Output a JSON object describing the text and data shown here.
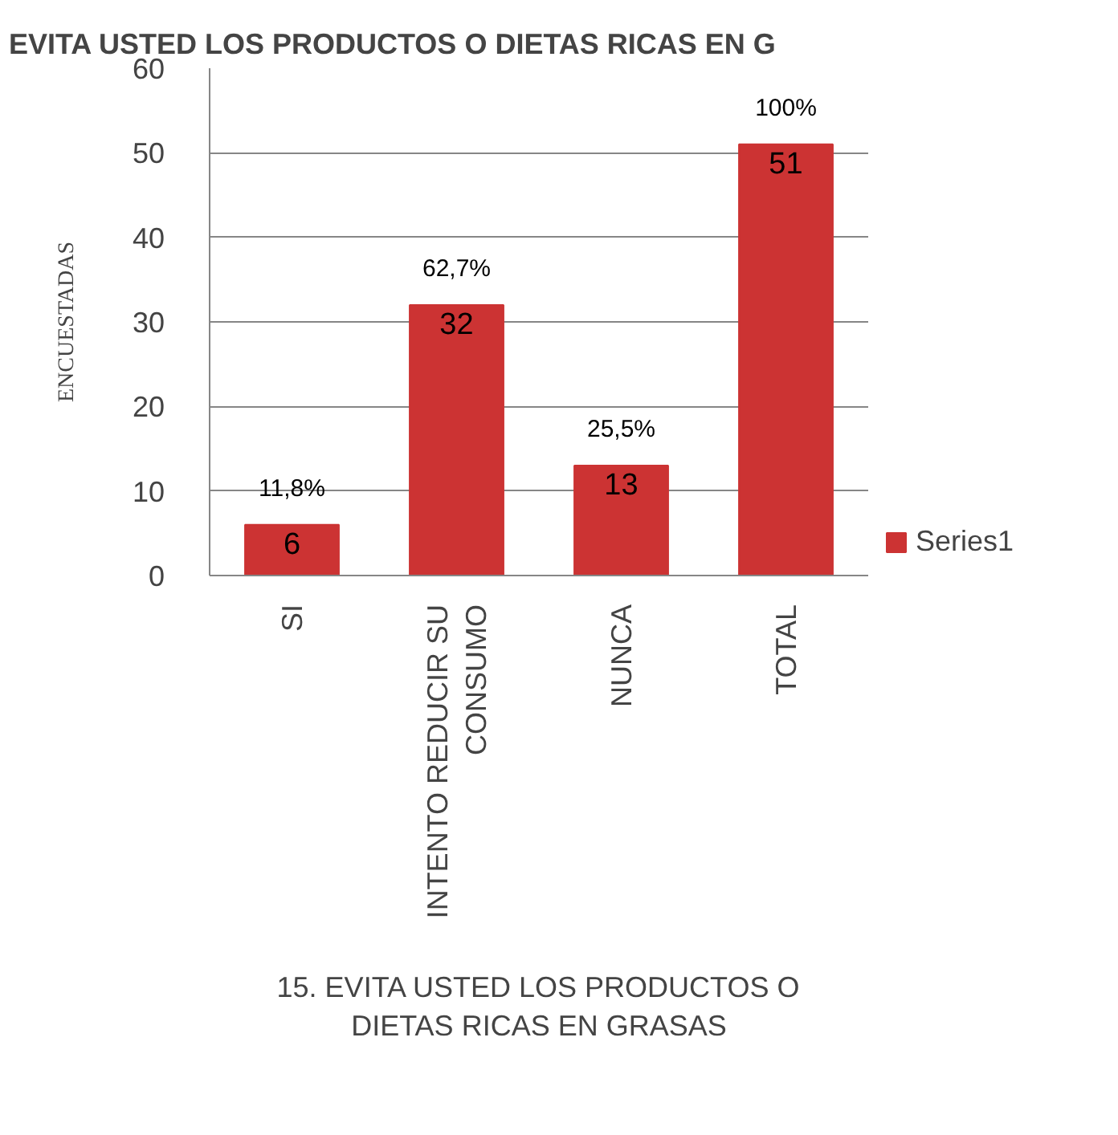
{
  "chart_data": {
    "type": "bar",
    "title": "EVITA USTED LOS PRODUCTOS O DIETAS RICAS EN G",
    "xlabel": "15. EVITA USTED LOS PRODUCTOS O DIETAS RICAS EN GRASAS",
    "ylabel": "ENCUESTADAS",
    "categories": [
      "SI",
      "INTENTO REDUCIR SU CONSUMO",
      "NUNCA",
      "TOTAL"
    ],
    "series": [
      {
        "name": "Series1",
        "color": "#cc3333",
        "values": [
          6,
          32,
          13,
          51
        ]
      }
    ],
    "ylim": [
      0,
      60
    ],
    "yticks": [
      0,
      10,
      20,
      30,
      40,
      50,
      60
    ],
    "grid": "y",
    "legend": "right",
    "data_labels": true,
    "annotations": [
      {
        "text": "11,8%",
        "x": "SI",
        "y": 6
      },
      {
        "text": "62,7%",
        "x": "INTENTO REDUCIR SU CONSUMO",
        "y": 32
      },
      {
        "text": "25,5%",
        "x": "NUNCA",
        "y": 13
      },
      {
        "text": "100%",
        "x": "TOTAL",
        "y": 51
      }
    ]
  }
}
